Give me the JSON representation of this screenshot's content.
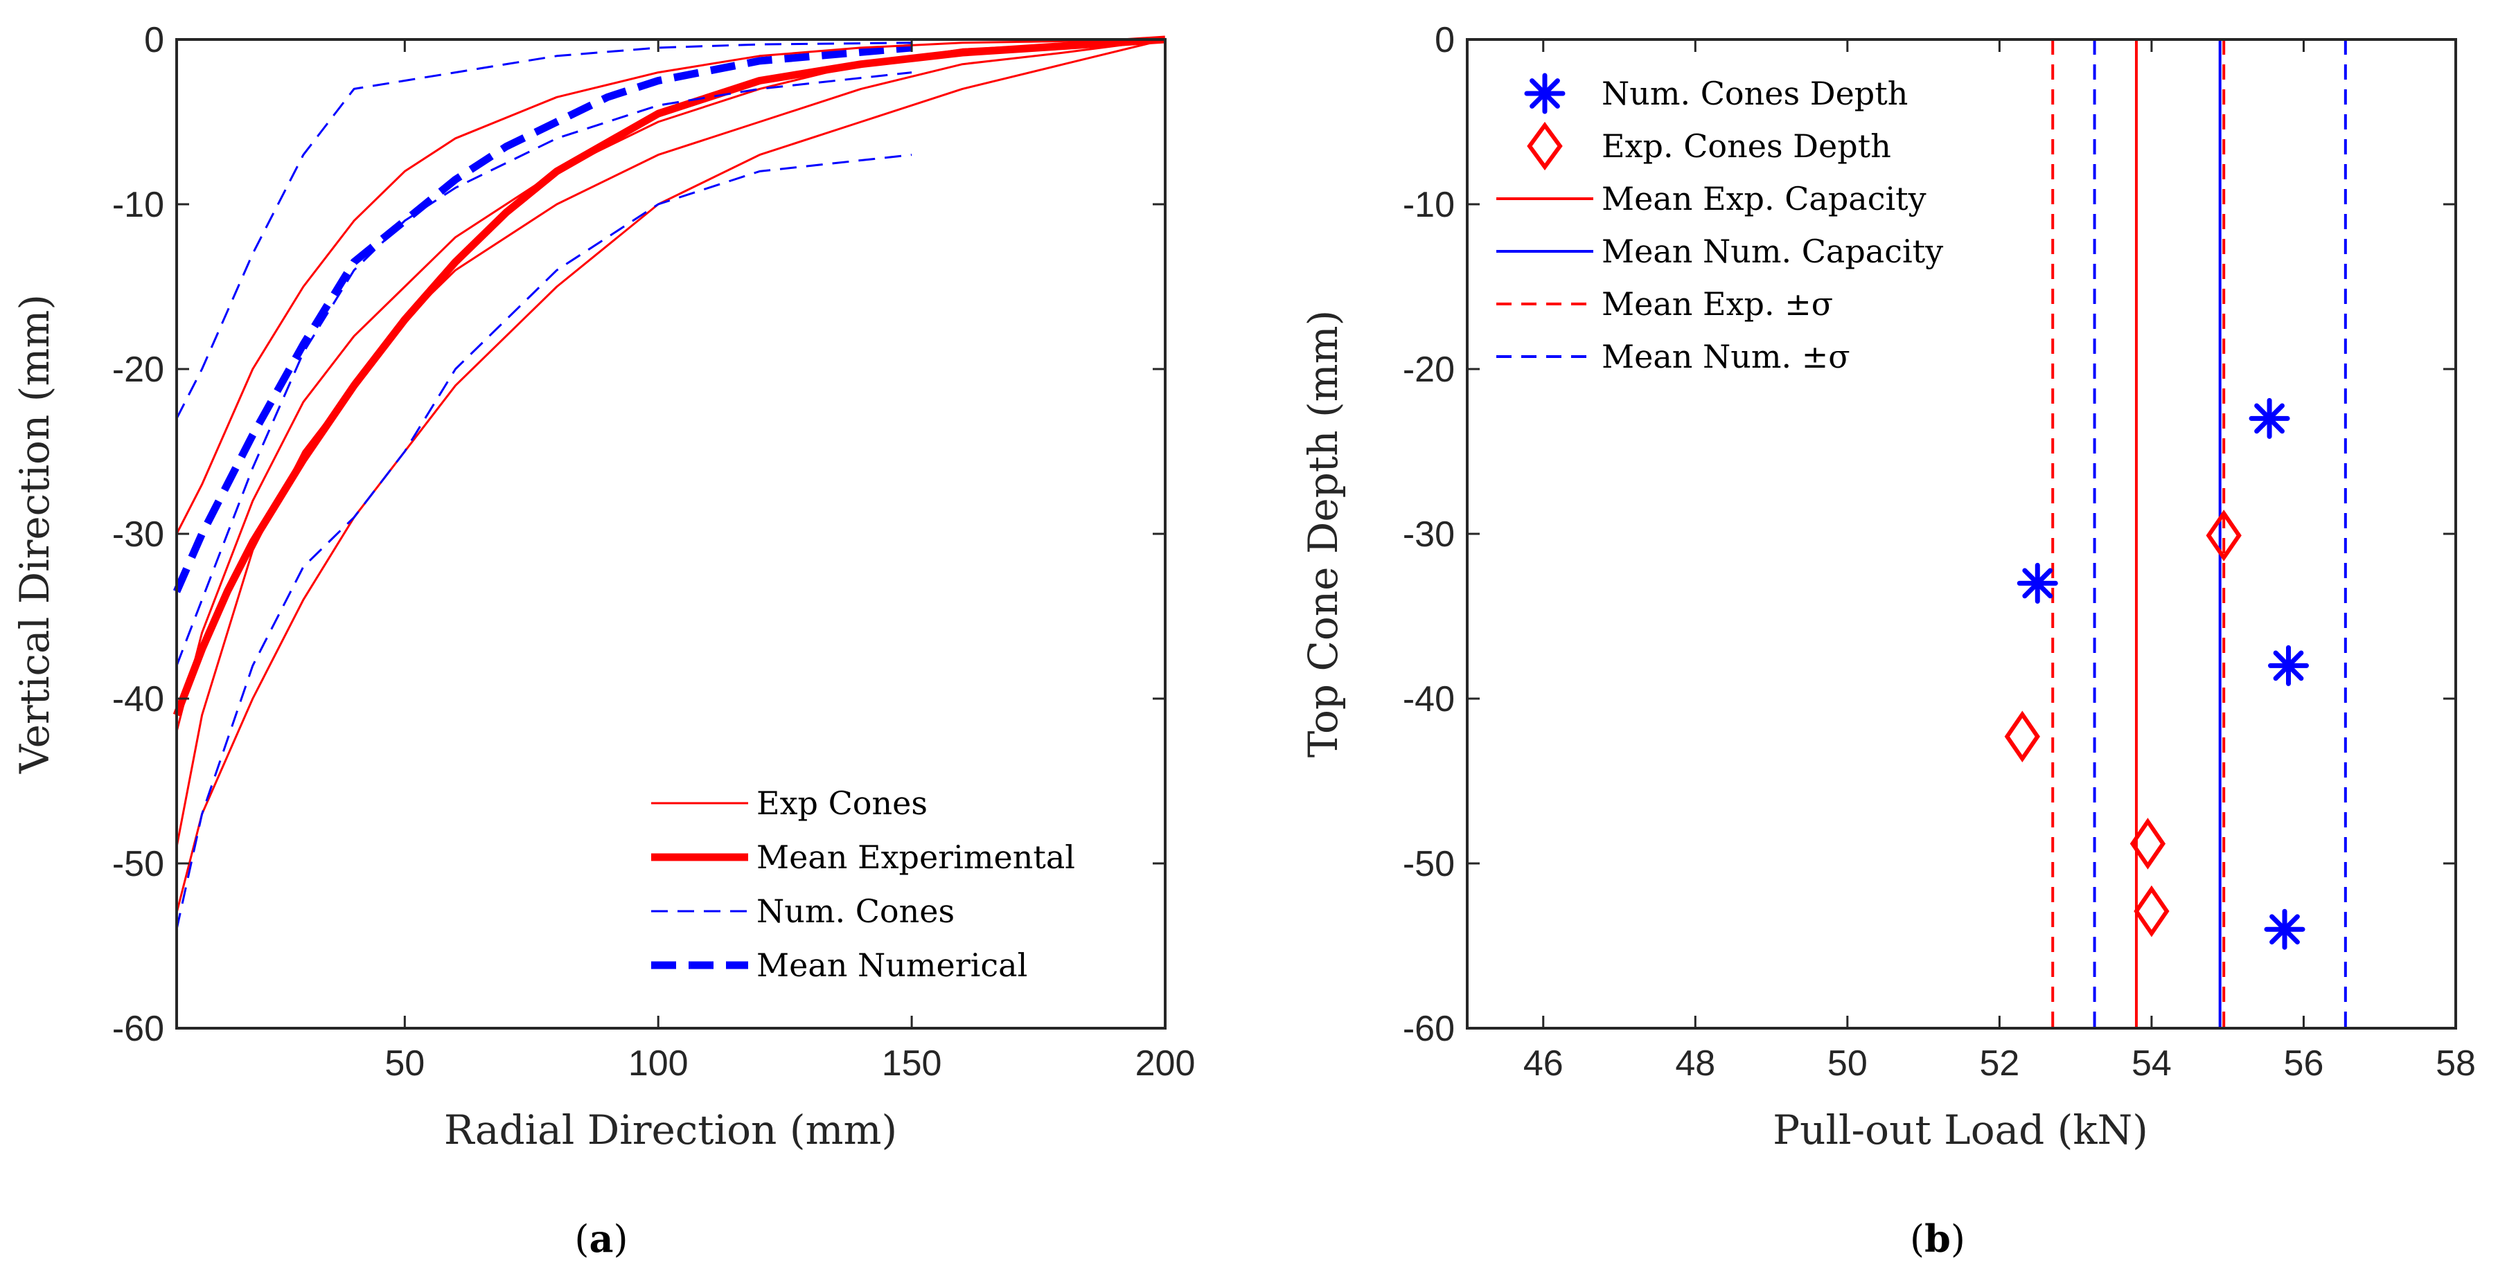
{
  "colors": {
    "exp": "#ff0000",
    "num": "#0000ff",
    "axis": "#262626"
  },
  "chart_data": [
    {
      "id": "a",
      "type": "line",
      "caption_prefix": "(",
      "caption_letter": "a",
      "caption_suffix": ")",
      "xlabel": "Radial Direction (mm)",
      "ylabel": "Vertical Direction (mm)",
      "xlim": [
        5,
        200
      ],
      "ylim": [
        -60,
        0
      ],
      "xticks": [
        50,
        100,
        150,
        200
      ],
      "yticks": [
        0,
        -10,
        -20,
        -30,
        -40,
        -50,
        -60
      ],
      "grid": false,
      "legend_position": "bottom-right",
      "legend": [
        {
          "label": "Exp Cones",
          "style": "exp-thin"
        },
        {
          "label": "Mean Experimental",
          "style": "exp-thick"
        },
        {
          "label": "Num. Cones",
          "style": "num-thin"
        },
        {
          "label": "Mean Numerical",
          "style": "num-thick"
        }
      ],
      "series": [
        {
          "name": "Mean Experimental",
          "style": "exp-thick",
          "x": [
            5,
            10,
            15,
            20,
            25,
            30,
            40,
            50,
            60,
            70,
            80,
            100,
            120,
            140,
            160,
            180,
            200
          ],
          "y": [
            -41,
            -37,
            -33.5,
            -30.5,
            -28,
            -25.5,
            -21,
            -17,
            -13.5,
            -10.5,
            -8,
            -4.5,
            -2.5,
            -1.5,
            -0.8,
            -0.4,
            0
          ]
        },
        {
          "name": "Mean Numerical",
          "style": "num-thick",
          "x": [
            5,
            10,
            20,
            30,
            40,
            50,
            60,
            70,
            80,
            90,
            100,
            120,
            150
          ],
          "y": [
            -33.5,
            -30,
            -24,
            -18.5,
            -13.5,
            -11,
            -8.5,
            -6.5,
            -5,
            -3.5,
            -2.5,
            -1.3,
            -0.5
          ]
        },
        {
          "name": "Exp Cone 1",
          "style": "exp-thin",
          "x": [
            5,
            10,
            20,
            30,
            40,
            50,
            60,
            80,
            100,
            120,
            140,
            160,
            180,
            200
          ],
          "y": [
            -30,
            -27,
            -20,
            -15,
            -11,
            -8,
            -6,
            -3.5,
            -2,
            -1,
            -0.5,
            -0.2,
            -0.1,
            0
          ]
        },
        {
          "name": "Exp Cone 2",
          "style": "exp-thin",
          "x": [
            5,
            10,
            20,
            30,
            40,
            50,
            60,
            80,
            100,
            120,
            140,
            160,
            180,
            200
          ],
          "y": [
            -42,
            -36,
            -28,
            -22,
            -18,
            -15,
            -12,
            -8,
            -5,
            -3,
            -1.5,
            -0.6,
            -0.3,
            0
          ]
        },
        {
          "name": "Exp Cone 3",
          "style": "exp-thin",
          "x": [
            5,
            10,
            20,
            30,
            40,
            50,
            60,
            80,
            100,
            120,
            140,
            160,
            180,
            200
          ],
          "y": [
            -49,
            -41,
            -31,
            -25,
            -21,
            -17,
            -14,
            -10,
            -7,
            -5,
            -3,
            -1.5,
            -0.8,
            0
          ]
        },
        {
          "name": "Exp Cone 4",
          "style": "exp-thin",
          "x": [
            5,
            10,
            20,
            30,
            40,
            50,
            60,
            80,
            100,
            120,
            140,
            160,
            180,
            200
          ],
          "y": [
            -53,
            -47,
            -40,
            -34,
            -29,
            -25,
            -21,
            -15,
            -10,
            -7,
            -5,
            -3,
            -1.5,
            0
          ]
        },
        {
          "name": "Num Cone 1",
          "style": "num-thin",
          "x": [
            5,
            10,
            20,
            30,
            40,
            50,
            60,
            80,
            100,
            120,
            150
          ],
          "y": [
            -23,
            -20,
            -13,
            -7,
            -3,
            -2.5,
            -2,
            -1,
            -0.5,
            -0.3,
            -0.2
          ]
        },
        {
          "name": "Num Cone 2",
          "style": "num-thin",
          "x": [
            5,
            10,
            20,
            30,
            40,
            50,
            60,
            80,
            100,
            120,
            150
          ],
          "y": [
            -38,
            -34,
            -26,
            -19,
            -14,
            -11,
            -9,
            -6,
            -4,
            -3,
            -2
          ]
        },
        {
          "name": "Num Cone 3",
          "style": "num-thin",
          "x": [
            5,
            10,
            20,
            30,
            40,
            50,
            60,
            80,
            100,
            120,
            150
          ],
          "y": [
            -54,
            -47,
            -38,
            -32,
            -29,
            -25,
            -20,
            -14,
            -10,
            -8,
            -7
          ]
        }
      ]
    },
    {
      "id": "b",
      "type": "scatter",
      "caption_prefix": "(",
      "caption_letter": "b",
      "caption_suffix": ")",
      "xlabel": "Pull-out Load (kN)",
      "ylabel": "Top Cone Depth (mm)",
      "xlim": [
        45,
        58
      ],
      "ylim": [
        -60,
        0
      ],
      "xticks": [
        46,
        48,
        50,
        52,
        54,
        56,
        58
      ],
      "yticks": [
        0,
        -10,
        -20,
        -30,
        -40,
        -50,
        -60
      ],
      "grid": false,
      "legend_position": "top-left",
      "legend": [
        {
          "label": "Num. Cones Depth",
          "style": "num-marker"
        },
        {
          "label": "Exp. Cones Depth",
          "style": "exp-marker"
        },
        {
          "label": "Mean Exp. Capacity",
          "style": "exp-line"
        },
        {
          "label": "Mean Num. Capacity",
          "style": "num-line"
        },
        {
          "label": "Mean Exp. ±σ",
          "style": "exp-dash"
        },
        {
          "label": "Mean Num. ±σ",
          "style": "num-dash"
        }
      ],
      "num_points": [
        {
          "x": 55.55,
          "y": -23
        },
        {
          "x": 52.5,
          "y": -33
        },
        {
          "x": 55.8,
          "y": -38
        },
        {
          "x": 55.75,
          "y": -54
        }
      ],
      "exp_points": [
        {
          "x": 54.95,
          "y": -30.1
        },
        {
          "x": 52.3,
          "y": -42.3
        },
        {
          "x": 53.95,
          "y": -48.8
        },
        {
          "x": 54.0,
          "y": -52.9
        }
      ],
      "vlines": [
        {
          "name": "Mean Exp. Capacity",
          "x": 53.8,
          "style": "exp-line"
        },
        {
          "name": "Mean Num. Capacity",
          "x": 54.9,
          "style": "num-line"
        },
        {
          "name": "Mean Exp. -σ",
          "x": 52.7,
          "style": "exp-dash"
        },
        {
          "name": "Mean Exp. +σ",
          "x": 54.95,
          "style": "exp-dash"
        },
        {
          "name": "Mean Num. -σ",
          "x": 53.25,
          "style": "num-dash"
        },
        {
          "name": "Mean Num. +σ",
          "x": 56.55,
          "style": "num-dash"
        }
      ]
    }
  ]
}
